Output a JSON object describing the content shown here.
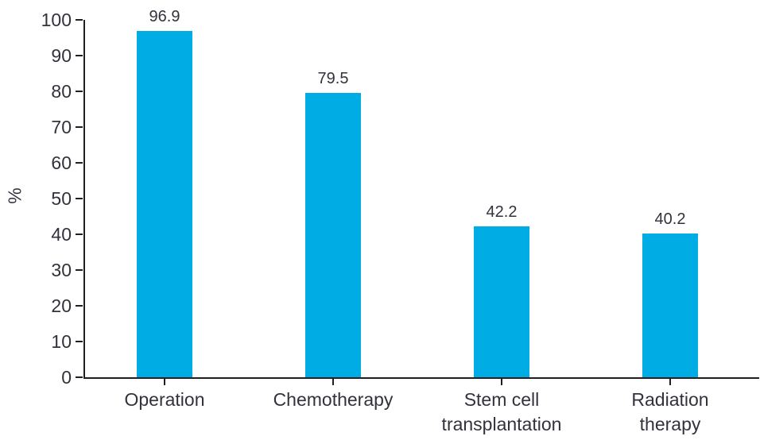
{
  "chart_data": {
    "type": "bar",
    "title": "",
    "xlabel": "",
    "ylabel": "%",
    "categories": [
      "Operation",
      "Chemotherapy",
      "Stem cell transplantation",
      "Radiation therapy"
    ],
    "category_lines": [
      [
        "Operation"
      ],
      [
        "Chemotherapy"
      ],
      [
        "Stem cell",
        "transplantation"
      ],
      [
        "Radiation",
        "therapy"
      ]
    ],
    "values": [
      96.9,
      79.5,
      42.2,
      40.2
    ],
    "value_labels": [
      "96.9",
      "79.5",
      "42.2",
      "40.2"
    ],
    "ylim": [
      0,
      100
    ],
    "ytick_step": 10,
    "ytick_labels": [
      "0",
      "10",
      "20",
      "30",
      "40",
      "50",
      "60",
      "70",
      "80",
      "90",
      "100"
    ],
    "grid": false,
    "legend": null,
    "colors": {
      "bar": "#00ace4",
      "axis": "#231f20",
      "text": "#33323c",
      "background": "#ffffff"
    }
  }
}
